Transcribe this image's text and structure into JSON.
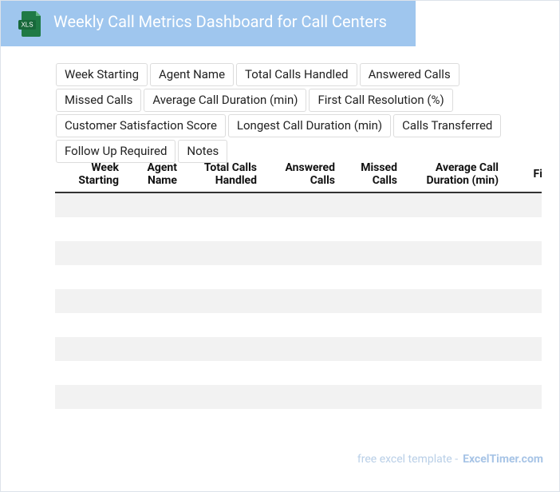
{
  "header": {
    "icon_label": "XLS",
    "title": "Weekly Call Metrics Dashboard for Call Centers"
  },
  "fields": [
    "Week Starting",
    "Agent Name",
    "Total Calls Handled",
    "Answered Calls",
    "Missed Calls",
    "Average Call Duration (min)",
    "First Call Resolution (%)",
    "Customer Satisfaction Score",
    "Longest Call Duration (min)",
    "Calls Transferred",
    "Follow Up Required",
    "Notes"
  ],
  "table": {
    "columns": [
      "Week Starting",
      "Agent Name",
      "Total Calls Handled",
      "Answered Calls",
      "Missed Calls",
      "Average Call Duration (min)",
      "First Call Resolution (%)"
    ]
  },
  "footer": {
    "text": "free excel template -",
    "link": "ExcelTimer.com"
  }
}
